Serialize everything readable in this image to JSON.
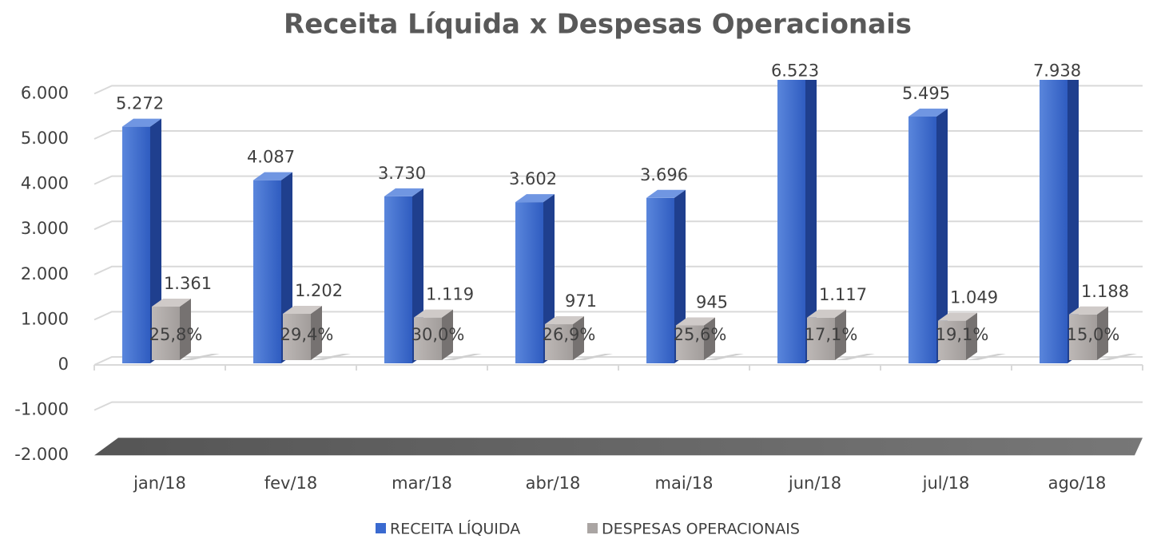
{
  "chart_data": {
    "type": "bar3d",
    "title": "Receita Líquida x Despesas Operacionais",
    "categories": [
      "jan/18",
      "fev/18",
      "mar/18",
      "abr/18",
      "mai/18",
      "jun/18",
      "jul/18",
      "ago/18"
    ],
    "series": [
      {
        "name": "RECEITA LÍQUIDA",
        "color": "#3a6ad0",
        "values": [
          5272,
          4087,
          3730,
          3602,
          3696,
          6523,
          5495,
          7938
        ],
        "value_labels": [
          "5.272",
          "4.087",
          "3.730",
          "3.602",
          "3.696",
          "6.523",
          "5.495",
          "7.938"
        ]
      },
      {
        "name": "DESPESAS OPERACIONAIS",
        "color": "#aaa5a3",
        "values": [
          1361,
          1202,
          1119,
          971,
          945,
          1117,
          1049,
          1188
        ],
        "value_labels": [
          "1.361",
          "1.202",
          "1.119",
          "971",
          "945",
          "1.117",
          "1.049",
          "1.188"
        ]
      }
    ],
    "percent_labels": [
      "25,8%",
      "29,4%",
      "30,0%",
      "26,9%",
      "25,6%",
      "17,1%",
      "19,1%",
      "15,0%"
    ],
    "ylim": [
      -2000,
      6000
    ],
    "yticks": [
      {
        "value": -2000,
        "label": "-2.000"
      },
      {
        "value": -1000,
        "label": "-1.000"
      },
      0,
      {
        "value": 1000,
        "label": "1.000"
      },
      {
        "value": 2000,
        "label": "2.000"
      },
      {
        "value": 3000,
        "label": "3.000"
      },
      {
        "value": 4000,
        "label": "4.000"
      },
      {
        "value": 5000,
        "label": "5.000"
      },
      {
        "value": 6000,
        "label": "6.000"
      }
    ],
    "grid": true,
    "legend": "bottom"
  }
}
